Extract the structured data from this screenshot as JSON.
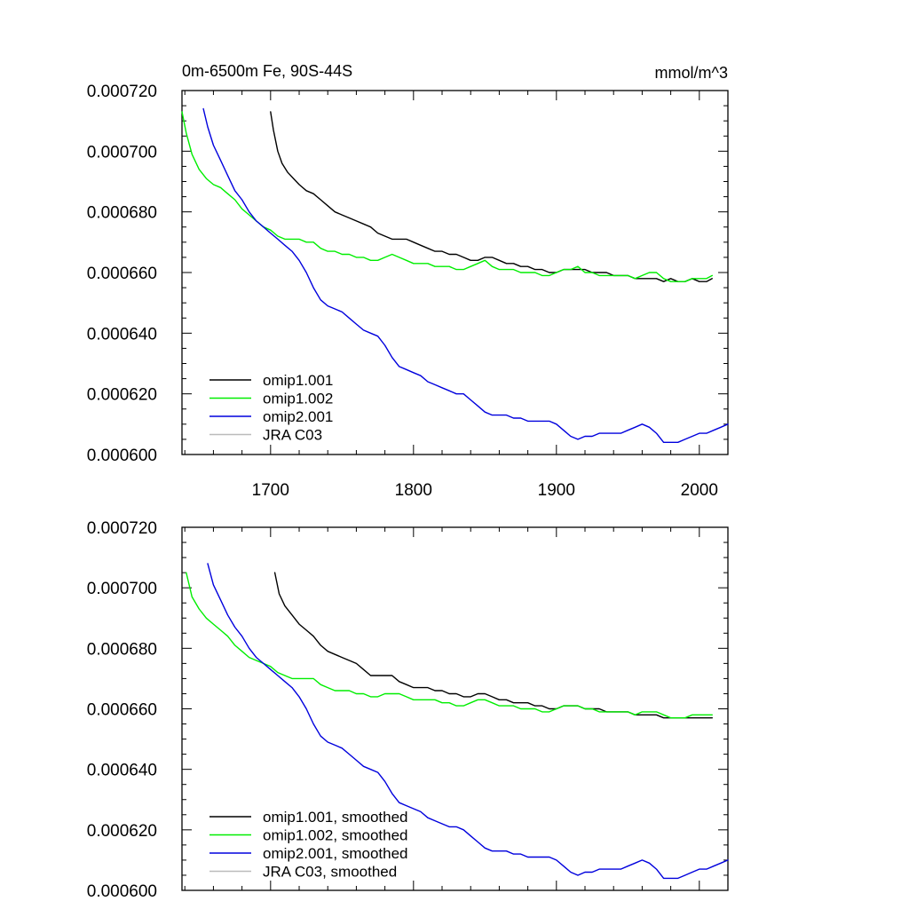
{
  "colors": {
    "omip1_001": "#000000",
    "omip1_002": "#00ee00",
    "omip2_001": "#0000dd",
    "jra_c03": "#bbbbbb"
  },
  "chart_data": [
    {
      "type": "line",
      "title_left": "0m-6500m Fe, 90S-44S",
      "title_right": "mmol/m^3",
      "xlabel": "",
      "ylabel": "",
      "xlim": [
        1638,
        2020
      ],
      "ylim": [
        0.0006,
        0.00072
      ],
      "y_ticks": [
        "0.000600",
        "0.000620",
        "0.000640",
        "0.000660",
        "0.000680",
        "0.000700",
        "0.000720"
      ],
      "x_ticks": [
        "1700",
        "1800",
        "1900",
        "2000"
      ],
      "legend_position": "bottom-left",
      "series": [
        {
          "name": "omip1.001",
          "color_key": "omip1_001",
          "x": [
            1700,
            1702,
            1705,
            1708,
            1712,
            1716,
            1720,
            1725,
            1730,
            1735,
            1740,
            1745,
            1750,
            1755,
            1760,
            1765,
            1770,
            1775,
            1780,
            1785,
            1790,
            1795,
            1800,
            1805,
            1810,
            1815,
            1820,
            1825,
            1830,
            1835,
            1840,
            1845,
            1850,
            1855,
            1860,
            1865,
            1870,
            1875,
            1880,
            1885,
            1890,
            1895,
            1900,
            1905,
            1910,
            1915,
            1920,
            1925,
            1930,
            1935,
            1940,
            1945,
            1950,
            1955,
            1960,
            1965,
            1970,
            1975,
            1980,
            1985,
            1990,
            1995,
            2000,
            2005,
            2009
          ],
          "y": [
            0.000713,
            0.000707,
            0.0007,
            0.000696,
            0.000693,
            0.000691,
            0.000689,
            0.000687,
            0.000686,
            0.000684,
            0.000682,
            0.00068,
            0.000679,
            0.000678,
            0.000677,
            0.000676,
            0.000675,
            0.000673,
            0.000672,
            0.000671,
            0.000671,
            0.000671,
            0.00067,
            0.000669,
            0.000668,
            0.000667,
            0.000667,
            0.000666,
            0.000666,
            0.000665,
            0.000664,
            0.000664,
            0.000665,
            0.000665,
            0.000664,
            0.000663,
            0.000663,
            0.000662,
            0.000662,
            0.000661,
            0.000661,
            0.00066,
            0.00066,
            0.000661,
            0.000661,
            0.000661,
            0.000661,
            0.00066,
            0.00066,
            0.00066,
            0.000659,
            0.000659,
            0.000659,
            0.000658,
            0.000658,
            0.000658,
            0.000658,
            0.000657,
            0.000658,
            0.000657,
            0.000657,
            0.000658,
            0.000657,
            0.000657,
            0.000658
          ]
        },
        {
          "name": "omip1.002",
          "color_key": "omip1_002",
          "x": [
            1638,
            1641,
            1645,
            1650,
            1655,
            1660,
            1665,
            1670,
            1675,
            1680,
            1685,
            1690,
            1695,
            1700,
            1705,
            1710,
            1715,
            1720,
            1725,
            1730,
            1735,
            1740,
            1745,
            1750,
            1755,
            1760,
            1765,
            1770,
            1775,
            1780,
            1785,
            1790,
            1795,
            1800,
            1805,
            1810,
            1815,
            1820,
            1825,
            1830,
            1835,
            1840,
            1845,
            1850,
            1855,
            1860,
            1865,
            1870,
            1875,
            1880,
            1885,
            1890,
            1895,
            1900,
            1905,
            1910,
            1915,
            1920,
            1925,
            1930,
            1935,
            1940,
            1945,
            1950,
            1955,
            1960,
            1965,
            1970,
            1975,
            1980,
            1985,
            1990,
            1995,
            2000,
            2005,
            2009
          ],
          "y": [
            0.000713,
            0.000706,
            0.000699,
            0.000694,
            0.000691,
            0.000689,
            0.000688,
            0.000686,
            0.000684,
            0.000681,
            0.000679,
            0.000677,
            0.000675,
            0.000674,
            0.000672,
            0.000671,
            0.000671,
            0.000671,
            0.00067,
            0.00067,
            0.000668,
            0.000667,
            0.000667,
            0.000666,
            0.000666,
            0.000665,
            0.000665,
            0.000664,
            0.000664,
            0.000665,
            0.000666,
            0.000665,
            0.000664,
            0.000663,
            0.000663,
            0.000663,
            0.000662,
            0.000662,
            0.000662,
            0.000661,
            0.000661,
            0.000662,
            0.000663,
            0.000664,
            0.000662,
            0.000661,
            0.000661,
            0.000661,
            0.00066,
            0.00066,
            0.00066,
            0.000659,
            0.000659,
            0.00066,
            0.000661,
            0.000661,
            0.000662,
            0.00066,
            0.00066,
            0.000659,
            0.000659,
            0.000659,
            0.000659,
            0.000659,
            0.000658,
            0.000659,
            0.00066,
            0.00066,
            0.000658,
            0.000657,
            0.000657,
            0.000657,
            0.000658,
            0.000658,
            0.000658,
            0.000659
          ]
        },
        {
          "name": "omip2.001",
          "color_key": "omip2_001",
          "x": [
            1653,
            1656,
            1660,
            1665,
            1670,
            1675,
            1680,
            1685,
            1690,
            1695,
            1700,
            1705,
            1710,
            1715,
            1720,
            1725,
            1730,
            1735,
            1740,
            1745,
            1750,
            1755,
            1760,
            1765,
            1770,
            1775,
            1780,
            1785,
            1790,
            1795,
            1800,
            1805,
            1810,
            1815,
            1820,
            1825,
            1830,
            1835,
            1840,
            1845,
            1850,
            1855,
            1860,
            1865,
            1870,
            1875,
            1880,
            1885,
            1890,
            1895,
            1900,
            1905,
            1910,
            1915,
            1920,
            1925,
            1930,
            1935,
            1940,
            1945,
            1950,
            1955,
            1960,
            1965,
            1970,
            1975,
            1980,
            1985,
            1990,
            1995,
            2000,
            2005,
            2010,
            2015,
            2020
          ],
          "y": [
            0.000714,
            0.000708,
            0.000702,
            0.000697,
            0.000692,
            0.000687,
            0.000684,
            0.00068,
            0.000677,
            0.000675,
            0.000673,
            0.000671,
            0.000669,
            0.000667,
            0.000664,
            0.00066,
            0.000655,
            0.000651,
            0.000649,
            0.000648,
            0.000647,
            0.000645,
            0.000643,
            0.000641,
            0.00064,
            0.000639,
            0.000636,
            0.000632,
            0.000629,
            0.000628,
            0.000627,
            0.000626,
            0.000624,
            0.000623,
            0.000622,
            0.000621,
            0.00062,
            0.00062,
            0.000618,
            0.000616,
            0.000614,
            0.000613,
            0.000613,
            0.000613,
            0.000612,
            0.000612,
            0.000611,
            0.000611,
            0.000611,
            0.000611,
            0.00061,
            0.000608,
            0.000606,
            0.000605,
            0.000606,
            0.000606,
            0.000607,
            0.000607,
            0.000607,
            0.000607,
            0.000608,
            0.000609,
            0.00061,
            0.000609,
            0.000607,
            0.000604,
            0.000604,
            0.000604,
            0.000605,
            0.000606,
            0.000607,
            0.000607,
            0.000608,
            0.000609,
            0.00061
          ]
        },
        {
          "name": "JRA C03",
          "color_key": "jra_c03",
          "x": [],
          "y": []
        }
      ]
    },
    {
      "type": "line",
      "title_left": "",
      "title_right": "",
      "xlabel": "",
      "ylabel": "",
      "xlim": [
        1638,
        2020
      ],
      "ylim": [
        0.0006,
        0.00072
      ],
      "y_ticks": [
        "0.000600",
        "0.000620",
        "0.000640",
        "0.000660",
        "0.000680",
        "0.000700",
        "0.000720"
      ],
      "x_ticks": [],
      "legend_position": "bottom-left",
      "series": [
        {
          "name": "omip1.001, smoothed",
          "color_key": "omip1_001",
          "x": [
            1703,
            1706,
            1710,
            1715,
            1720,
            1725,
            1730,
            1735,
            1740,
            1745,
            1750,
            1755,
            1760,
            1765,
            1770,
            1775,
            1780,
            1785,
            1790,
            1795,
            1800,
            1805,
            1810,
            1815,
            1820,
            1825,
            1830,
            1835,
            1840,
            1845,
            1850,
            1855,
            1860,
            1865,
            1870,
            1875,
            1880,
            1885,
            1890,
            1895,
            1900,
            1905,
            1910,
            1915,
            1920,
            1925,
            1930,
            1935,
            1940,
            1945,
            1950,
            1955,
            1960,
            1965,
            1970,
            1975,
            1980,
            1985,
            1990,
            1995,
            2000,
            2005,
            2009
          ],
          "y": [
            0.000705,
            0.000698,
            0.000694,
            0.000691,
            0.000688,
            0.000686,
            0.000684,
            0.000681,
            0.000679,
            0.000678,
            0.000677,
            0.000676,
            0.000675,
            0.000673,
            0.000671,
            0.000671,
            0.000671,
            0.000671,
            0.000669,
            0.000668,
            0.000667,
            0.000667,
            0.000667,
            0.000666,
            0.000666,
            0.000665,
            0.000665,
            0.000664,
            0.000664,
            0.000665,
            0.000665,
            0.000664,
            0.000663,
            0.000663,
            0.000662,
            0.000662,
            0.000662,
            0.000661,
            0.000661,
            0.00066,
            0.00066,
            0.000661,
            0.000661,
            0.000661,
            0.00066,
            0.00066,
            0.00066,
            0.000659,
            0.000659,
            0.000659,
            0.000659,
            0.000658,
            0.000658,
            0.000658,
            0.000658,
            0.000657,
            0.000657,
            0.000657,
            0.000657,
            0.000657,
            0.000657,
            0.000657,
            0.000657
          ]
        },
        {
          "name": "omip1.002, smoothed",
          "color_key": "omip1_002",
          "x": [
            1641,
            1645,
            1650,
            1655,
            1660,
            1665,
            1670,
            1675,
            1680,
            1685,
            1690,
            1695,
            1700,
            1705,
            1710,
            1715,
            1720,
            1725,
            1730,
            1735,
            1740,
            1745,
            1750,
            1755,
            1760,
            1765,
            1770,
            1775,
            1780,
            1785,
            1790,
            1795,
            1800,
            1805,
            1810,
            1815,
            1820,
            1825,
            1830,
            1835,
            1840,
            1845,
            1850,
            1855,
            1860,
            1865,
            1870,
            1875,
            1880,
            1885,
            1890,
            1895,
            1900,
            1905,
            1910,
            1915,
            1920,
            1925,
            1930,
            1935,
            1940,
            1945,
            1950,
            1955,
            1960,
            1965,
            1970,
            1975,
            1980,
            1985,
            1990,
            1995,
            2000,
            2005,
            2009
          ],
          "y": [
            0.000705,
            0.000697,
            0.000693,
            0.00069,
            0.000688,
            0.000686,
            0.000684,
            0.000681,
            0.000679,
            0.000677,
            0.000676,
            0.000675,
            0.000674,
            0.000672,
            0.000671,
            0.00067,
            0.00067,
            0.00067,
            0.00067,
            0.000668,
            0.000667,
            0.000666,
            0.000666,
            0.000666,
            0.000665,
            0.000665,
            0.000664,
            0.000664,
            0.000665,
            0.000665,
            0.000665,
            0.000664,
            0.000663,
            0.000663,
            0.000663,
            0.000663,
            0.000662,
            0.000662,
            0.000661,
            0.000661,
            0.000662,
            0.000663,
            0.000663,
            0.000662,
            0.000661,
            0.000661,
            0.000661,
            0.00066,
            0.00066,
            0.00066,
            0.000659,
            0.000659,
            0.00066,
            0.000661,
            0.000661,
            0.000661,
            0.00066,
            0.00066,
            0.000659,
            0.000659,
            0.000659,
            0.000659,
            0.000659,
            0.000658,
            0.000659,
            0.000659,
            0.000659,
            0.000658,
            0.000657,
            0.000657,
            0.000657,
            0.000658,
            0.000658,
            0.000658,
            0.000658
          ]
        },
        {
          "name": "omip2.001, smoothed",
          "color_key": "omip2_001",
          "x": [
            1656,
            1660,
            1665,
            1670,
            1675,
            1680,
            1685,
            1690,
            1695,
            1700,
            1705,
            1710,
            1715,
            1720,
            1725,
            1730,
            1735,
            1740,
            1745,
            1750,
            1755,
            1760,
            1765,
            1770,
            1775,
            1780,
            1785,
            1790,
            1795,
            1800,
            1805,
            1810,
            1815,
            1820,
            1825,
            1830,
            1835,
            1840,
            1845,
            1850,
            1855,
            1860,
            1865,
            1870,
            1875,
            1880,
            1885,
            1890,
            1895,
            1900,
            1905,
            1910,
            1915,
            1920,
            1925,
            1930,
            1935,
            1940,
            1945,
            1950,
            1955,
            1960,
            1965,
            1970,
            1975,
            1980,
            1985,
            1990,
            1995,
            2000,
            2005,
            2010,
            2015,
            2020
          ],
          "y": [
            0.000708,
            0.000701,
            0.000696,
            0.000691,
            0.000687,
            0.000684,
            0.00068,
            0.000677,
            0.000675,
            0.000673,
            0.000671,
            0.000669,
            0.000667,
            0.000664,
            0.00066,
            0.000655,
            0.000651,
            0.000649,
            0.000648,
            0.000647,
            0.000645,
            0.000643,
            0.000641,
            0.00064,
            0.000639,
            0.000636,
            0.000632,
            0.000629,
            0.000628,
            0.000627,
            0.000626,
            0.000624,
            0.000623,
            0.000622,
            0.000621,
            0.000621,
            0.00062,
            0.000618,
            0.000616,
            0.000614,
            0.000613,
            0.000613,
            0.000613,
            0.000612,
            0.000612,
            0.000611,
            0.000611,
            0.000611,
            0.000611,
            0.00061,
            0.000608,
            0.000606,
            0.000605,
            0.000606,
            0.000606,
            0.000607,
            0.000607,
            0.000607,
            0.000607,
            0.000608,
            0.000609,
            0.00061,
            0.000609,
            0.000607,
            0.000604,
            0.000604,
            0.000604,
            0.000605,
            0.000606,
            0.000607,
            0.000607,
            0.000608,
            0.000609,
            0.00061
          ]
        },
        {
          "name": "JRA C03, smoothed",
          "color_key": "jra_c03",
          "x": [],
          "y": []
        }
      ]
    }
  ]
}
